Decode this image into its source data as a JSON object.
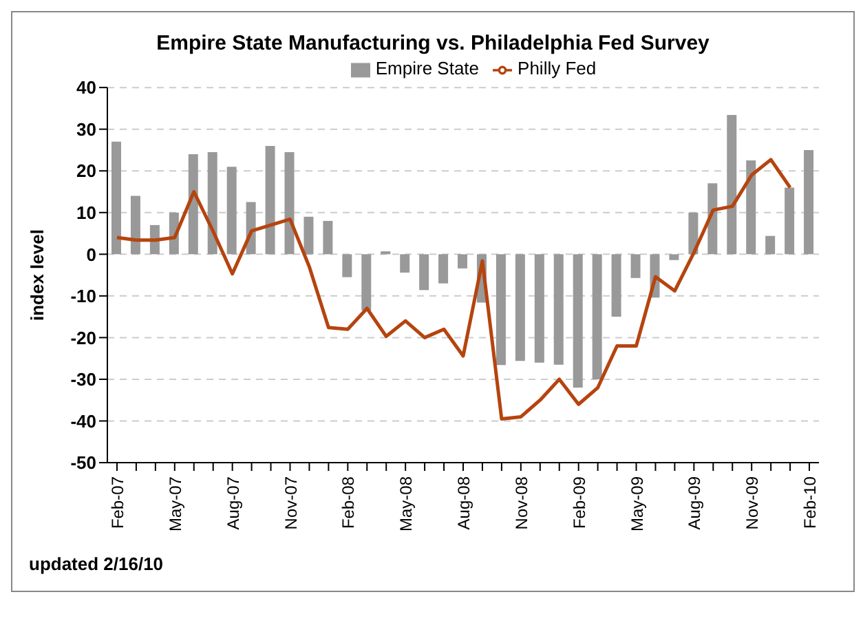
{
  "chart_data": {
    "type": "bar",
    "title": "Empire State Manufacturing vs. Philadelphia Fed Survey",
    "ylabel": "index level",
    "categories": [
      "Feb-07",
      null,
      null,
      "May-07",
      null,
      null,
      "Aug-07",
      null,
      null,
      "Nov-07",
      null,
      null,
      "Feb-08",
      null,
      null,
      "May-08",
      null,
      null,
      "Aug-08",
      null,
      null,
      "Nov-08",
      null,
      null,
      "Feb-09",
      null,
      null,
      "May-09",
      null,
      null,
      "Aug-09",
      null,
      null,
      "Nov-09",
      null,
      null,
      "Feb-10"
    ],
    "series": [
      {
        "name": "Empire State",
        "color": "#999999",
        "values": [
          27,
          14,
          7,
          10,
          24,
          24.5,
          21,
          12.5,
          26,
          24.5,
          9,
          8,
          -5.5,
          -13.5,
          0.7,
          -4.4,
          -8.6,
          -7,
          -3.4,
          -11.6,
          -26.6,
          -25.6,
          -26,
          -26.5,
          -32,
          -30,
          -15,
          -5.7,
          -10.4,
          -1.4,
          10,
          17,
          33.4,
          22.5,
          4.4,
          16,
          25
        ]
      },
      {
        "name": "Philly Fed",
        "type": "line",
        "color": "#b5440f",
        "values": [
          4,
          3.4,
          3.4,
          4,
          15,
          5.5,
          -4.7,
          5.6,
          7,
          8.4,
          -3,
          -17.6,
          -18,
          -13,
          -19.7,
          -16,
          -20,
          -18,
          -24.4,
          -1.6,
          -39.5,
          -39,
          -35,
          -30,
          -36,
          -32,
          -22,
          -22,
          -5.4,
          -8.8,
          0.4,
          10.6,
          11.5,
          19,
          22.7,
          16,
          null
        ]
      }
    ],
    "ylim": [
      -50,
      40
    ],
    "yticks": [
      -50,
      -40,
      -30,
      -20,
      -10,
      0,
      10,
      20,
      30,
      40
    ],
    "grid": "y",
    "legend": "top",
    "marker": "none",
    "line_style": "solid",
    "annotations": [
      "updated 2/16/10"
    ]
  }
}
